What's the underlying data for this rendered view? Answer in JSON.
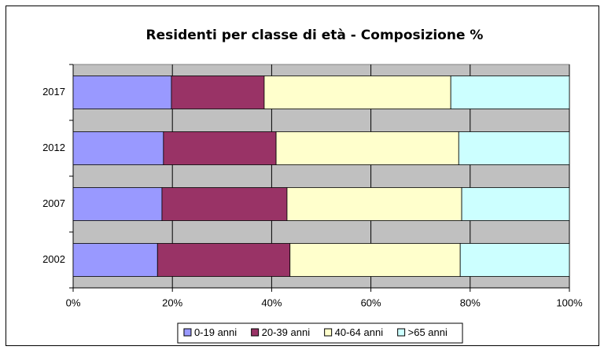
{
  "chart_data": {
    "type": "bar",
    "horizontal": true,
    "stacked": true,
    "title": "Residenti per classe di età - Composizione %",
    "categories": [
      "2002",
      "2007",
      "2012",
      "2017"
    ],
    "series": [
      {
        "name": "0-19 anni",
        "color": "#9999ff",
        "values": [
          17.0,
          17.9,
          18.2,
          19.8
        ]
      },
      {
        "name": "20-39 anni",
        "color": "#993366",
        "values": [
          26.7,
          25.2,
          22.7,
          18.7
        ]
      },
      {
        "name": "40-64 anni",
        "color": "#ffffcc",
        "values": [
          34.3,
          35.2,
          36.8,
          37.6
        ]
      },
      {
        "name": ">65 anni",
        "color": "#ccffff",
        "values": [
          22.0,
          21.7,
          22.3,
          23.9
        ]
      }
    ],
    "xlim": [
      0,
      100
    ],
    "xticks": [
      {
        "value": 0,
        "label": "0%"
      },
      {
        "value": 20,
        "label": "20%"
      },
      {
        "value": 40,
        "label": "40%"
      },
      {
        "value": 60,
        "label": "60%"
      },
      {
        "value": 80,
        "label": "80%"
      },
      {
        "value": 100,
        "label": "100%"
      }
    ],
    "grid": true,
    "legend": "bottom"
  }
}
